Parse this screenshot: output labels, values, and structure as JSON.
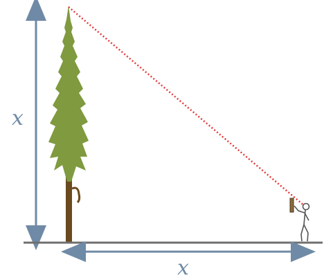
{
  "diagram": {
    "vertical_label": "x",
    "horizontal_label": "x",
    "colors": {
      "ground": "#6f6f6f",
      "measure_arrows": "#6f8aa6",
      "sight_line": "#e23a3a",
      "tree_foliage": "#7f9a3f",
      "tree_trunk": "#6a4a1e",
      "person": "#555555"
    }
  }
}
